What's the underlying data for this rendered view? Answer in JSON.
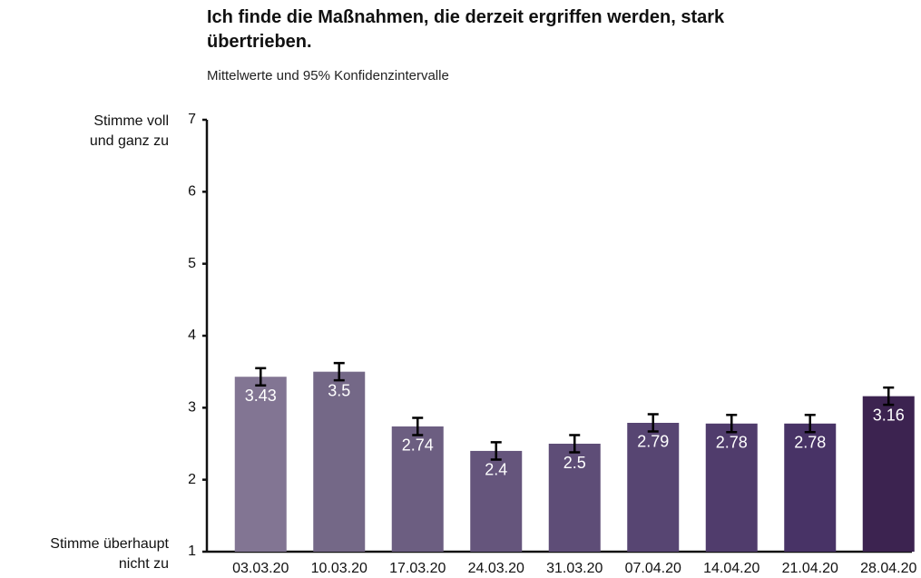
{
  "chart_data": {
    "type": "bar",
    "title": "Ich finde die Maßnahmen, die derzeit ergriffen werden, stark übertrieben.",
    "subtitle": "Mittelwerte und 95% Konfidenzintervalle",
    "y_top_label": [
      "Stimme voll",
      "und ganz zu"
    ],
    "y_bottom_label": [
      "Stimme überhaupt",
      "nicht zu"
    ],
    "categories": [
      "03.03.20",
      "10.03.20",
      "17.03.20",
      "24.03.20",
      "31.03.20",
      "07.04.20",
      "14.04.20",
      "21.04.20",
      "28.04.20"
    ],
    "values": [
      3.43,
      3.5,
      2.74,
      2.4,
      2.5,
      2.79,
      2.78,
      2.78,
      3.16
    ],
    "errors": [
      0.12,
      0.12,
      0.12,
      0.12,
      0.12,
      0.12,
      0.12,
      0.12,
      0.12
    ],
    "colors": [
      "#827593",
      "#746887",
      "#6c5e81",
      "#65557c",
      "#5e4d77",
      "#574572",
      "#503c6c",
      "#483366",
      "#3c2350"
    ],
    "ylim": [
      1,
      7
    ],
    "yticks": [
      1,
      2,
      3,
      4,
      5,
      6,
      7
    ],
    "grid": false
  }
}
